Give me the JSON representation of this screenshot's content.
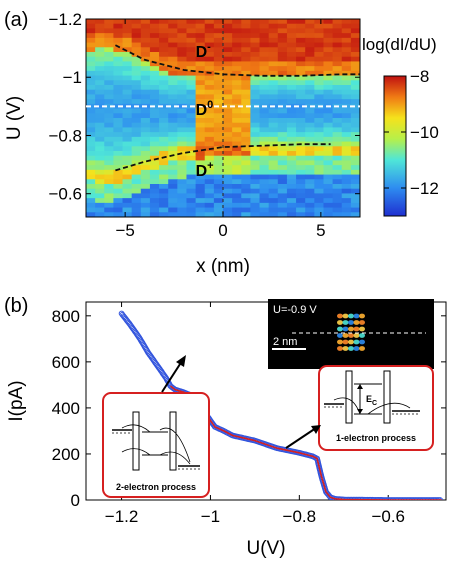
{
  "chart_data": [
    {
      "type": "heatmap",
      "panel_label": "(a)",
      "xlabel": "x (nm)",
      "ylabel": "U (V)",
      "xlim": [
        -7,
        7
      ],
      "ylim": [
        -0.52,
        -1.2
      ],
      "x_ticks": [
        -5,
        0,
        5
      ],
      "x_tick_labels": [
        "−5",
        "0",
        "5"
      ],
      "y_ticks": [
        -1.2,
        -1.0,
        -0.8,
        -0.6
      ],
      "y_tick_labels": [
        "−1.2",
        "−1",
        "−0.8",
        "−0.6"
      ],
      "colorbar": {
        "label": "log(dI/dU)",
        "range": [
          -13,
          -8
        ],
        "ticks": [
          -8,
          -10,
          -12
        ],
        "tick_labels": [
          "−8",
          "−10",
          "−12"
        ]
      },
      "annotations": [
        {
          "text": "D",
          "sup": "-",
          "x": -1.4,
          "y": -1.07
        },
        {
          "text": "D",
          "sup": "0",
          "x": -1.4,
          "y": -0.87
        },
        {
          "text": "D",
          "sup": "+",
          "x": -1.4,
          "y": -0.66
        }
      ],
      "dashed_lines": {
        "horizontal_white_U": -0.9,
        "vertical_dark_x": 0,
        "upper_curve": [
          [
            -5.5,
            -1.11
          ],
          [
            -4,
            -1.06
          ],
          [
            -2,
            -1.025
          ],
          [
            0,
            -1.01
          ],
          [
            2,
            -1.005
          ],
          [
            4,
            -1.005
          ],
          [
            6,
            -1.01
          ],
          [
            7,
            -1.01
          ]
        ],
        "lower_curve": [
          [
            -5.5,
            -0.68
          ],
          [
            -4,
            -0.71
          ],
          [
            -2,
            -0.74
          ],
          [
            0,
            -0.76
          ],
          [
            2,
            -0.765
          ],
          [
            4,
            -0.77
          ],
          [
            5.5,
            -0.77
          ]
        ]
      }
    },
    {
      "type": "line",
      "panel_label": "(b)",
      "xlabel": "U(V)",
      "ylabel": "I(pA)",
      "xlim": [
        -1.28,
        -0.47
      ],
      "ylim": [
        0,
        860
      ],
      "x_ticks": [
        -1.2,
        -1.0,
        -0.8,
        -0.6
      ],
      "x_tick_labels": [
        "−1.2",
        "−1",
        "−0.8",
        "−0.6"
      ],
      "y_ticks": [
        0,
        200,
        400,
        600,
        800
      ],
      "y_tick_labels": [
        "0",
        "200",
        "400",
        "600",
        "800"
      ],
      "series": [
        {
          "color": "#3355dd",
          "marker": "circle",
          "x": [
            -1.2,
            -1.18,
            -1.16,
            -1.14,
            -1.12,
            -1.1,
            -1.09,
            -1.08,
            -1.06,
            -1.04,
            -1.03,
            -1.02,
            -1.0,
            -0.99,
            -0.97,
            -0.95,
            -0.9,
            -0.85,
            -0.8,
            -0.78,
            -0.77,
            -0.76,
            -0.75,
            -0.74,
            -0.73,
            -0.72,
            -0.7,
            -0.65,
            -0.6,
            -0.55,
            -0.5,
            -0.48
          ],
          "y": [
            810,
            760,
            705,
            640,
            585,
            530,
            495,
            480,
            468,
            452,
            432,
            400,
            345,
            318,
            300,
            280,
            258,
            225,
            205,
            195,
            190,
            180,
            100,
            35,
            12,
            5,
            2,
            1,
            0,
            0,
            0,
            0
          ]
        },
        {
          "color": "#d62020",
          "x": [
            -1.09,
            -1.08,
            -1.06,
            -1.04,
            -1.03,
            -1.02,
            -1.0,
            -0.99,
            -0.97,
            -0.95,
            -0.9,
            -0.85,
            -0.8,
            -0.78,
            -0.77,
            -0.76,
            -0.75,
            -0.74,
            -0.73,
            -0.72,
            -0.7,
            -0.65,
            -0.6,
            -0.55,
            -0.5,
            -0.48
          ],
          "y": [
            495,
            480,
            468,
            452,
            432,
            400,
            345,
            318,
            300,
            280,
            258,
            225,
            205,
            195,
            190,
            180,
            100,
            35,
            12,
            5,
            2,
            1,
            0,
            0,
            0,
            0
          ]
        }
      ],
      "inset": {
        "label_voltage": "U=-0.9 V",
        "scale_bar": "2 nm"
      },
      "callouts": [
        {
          "text": "2-electron process"
        },
        {
          "text": "1-electron process",
          "energy_label": "E",
          "energy_sub": "C"
        }
      ]
    }
  ]
}
